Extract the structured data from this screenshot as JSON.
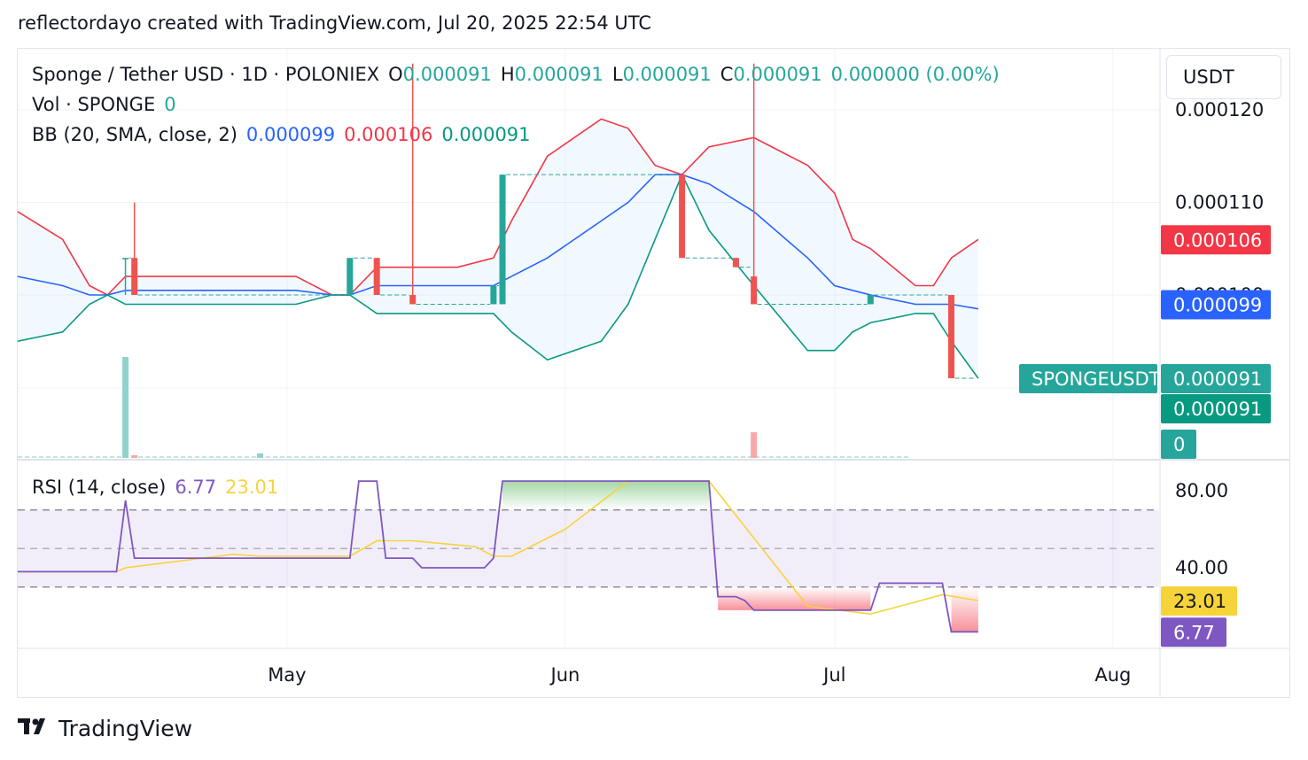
{
  "caption": "reflectordayo created with TradingView.com, Jul 20, 2025 22:54 UTC",
  "footer": {
    "logo_text": "TradingView",
    "logo_icon": "tradingview-logo-icon"
  },
  "unit_selector": "USDT",
  "colors": {
    "up": "#26a69a",
    "down": "#ef5350",
    "basis": "#2962ff",
    "upper": "#f23645",
    "lower": "#089981",
    "rsi": "#7e57c2",
    "rsi_ma": "#f7d33a",
    "grid": "#f0f3fa",
    "text": "#131722"
  },
  "legend": {
    "symbol": "Sponge / Tether USD · 1D · POLONIEX",
    "o_label": "O",
    "o_value": "0.000091",
    "h_label": "H",
    "h_value": "0.000091",
    "l_label": "L",
    "l_value": "0.000091",
    "c_label": "C",
    "c_value": "0.000091",
    "change": "0.000000 (0.00%)",
    "vol_label": "Vol · SPONGE",
    "vol_value": "0",
    "bb_label": "BB (20, SMA, close, 2)",
    "bb_basis": "0.000099",
    "bb_upper": "0.000106",
    "bb_lower": "0.000091",
    "rsi_label": "RSI (14, close)",
    "rsi_value": "6.77",
    "rsi_ma": "23.01"
  },
  "chart_data": [
    {
      "type": "candlestick",
      "title": "Sponge / Tether USD · 1D · POLONIEX",
      "x_ticks": [
        "May",
        "Jun",
        "Jul",
        "Aug"
      ],
      "y_ticks": [
        "0.000120",
        "0.000110",
        "0.000100"
      ],
      "ylim": [
        8.9e-05,
        0.00012
      ],
      "price_labels": [
        {
          "text": "0.000106",
          "value": 0.000106,
          "kind": "upper"
        },
        {
          "text": "0.000099",
          "value": 9.9e-05,
          "kind": "basis"
        },
        {
          "text": "0.000091",
          "value": 9.1e-05,
          "kind": "last"
        },
        {
          "text": "0.000091",
          "value": 9.1e-05,
          "kind": "lower"
        }
      ],
      "symbol_tag": "SPONGEUSDT",
      "volume_tag": "0",
      "candles": [
        {
          "date": "2025-04-13",
          "open": 0.000104,
          "high": 0.000104,
          "low": 0.0001,
          "close": 0.000104
        },
        {
          "date": "2025-04-14",
          "open": 0.000104,
          "high": 0.00011,
          "low": 0.0001,
          "close": 0.0001
        },
        {
          "date": "2025-05-08",
          "open": 0.0001,
          "high": 0.000104,
          "low": 0.0001,
          "close": 0.000104
        },
        {
          "date": "2025-05-11",
          "open": 0.000104,
          "high": 0.000104,
          "low": 0.0001,
          "close": 0.0001
        },
        {
          "date": "2025-05-15",
          "open": 0.0001,
          "high": 0.000125,
          "low": 9.9e-05,
          "close": 9.9e-05
        },
        {
          "date": "2025-05-24",
          "open": 9.9e-05,
          "high": 0.000101,
          "low": 9.9e-05,
          "close": 0.000101
        },
        {
          "date": "2025-05-25",
          "open": 9.9e-05,
          "high": 0.000113,
          "low": 9.9e-05,
          "close": 0.000113
        },
        {
          "date": "2025-06-14",
          "open": 0.000113,
          "high": 0.000113,
          "low": 0.000104,
          "close": 0.000104
        },
        {
          "date": "2025-06-20",
          "open": 0.000104,
          "high": 0.000104,
          "low": 0.000103,
          "close": 0.000103
        },
        {
          "date": "2025-06-22",
          "open": 0.000102,
          "high": 0.000125,
          "low": 9.9e-05,
          "close": 9.9e-05
        },
        {
          "date": "2025-07-05",
          "open": 9.9e-05,
          "high": 0.0001,
          "low": 9.9e-05,
          "close": 0.0001
        },
        {
          "date": "2025-07-14",
          "open": 0.0001,
          "high": 0.0001,
          "low": 9.1e-05,
          "close": 9.1e-05
        }
      ],
      "volume": [
        {
          "date": "2025-04-13",
          "value": 11
        },
        {
          "date": "2025-04-14",
          "value": 0.3
        },
        {
          "date": "2025-04-28",
          "value": 0.5
        },
        {
          "date": "2025-06-22",
          "value": 2.8
        }
      ],
      "bollinger": {
        "dates": [
          "2025-04-01",
          "2025-04-06",
          "2025-04-09",
          "2025-04-11",
          "2025-04-13",
          "2025-04-23",
          "2025-05-02",
          "2025-05-06",
          "2025-05-08",
          "2025-05-11",
          "2025-05-20",
          "2025-05-24",
          "2025-05-26",
          "2025-05-30",
          "2025-06-05",
          "2025-06-08",
          "2025-06-11",
          "2025-06-14",
          "2025-06-17",
          "2025-06-22",
          "2025-06-28",
          "2025-07-01",
          "2025-07-03",
          "2025-07-05",
          "2025-07-10",
          "2025-07-12",
          "2025-07-14",
          "2025-07-17"
        ],
        "upper": [
          0.000109,
          0.000106,
          0.000101,
          0.0001,
          0.000102,
          0.000102,
          0.000102,
          0.0001,
          0.0001,
          0.000103,
          0.000103,
          0.000104,
          0.000108,
          0.000115,
          0.000119,
          0.000118,
          0.000114,
          0.000113,
          0.000116,
          0.000117,
          0.000114,
          0.000111,
          0.000106,
          0.000105,
          0.000101,
          0.000101,
          0.000104,
          0.000106
        ],
        "basis": [
          0.000102,
          0.000101,
          0.0001,
          0.0001,
          0.0001005,
          0.0001005,
          0.0001005,
          0.0001,
          0.0001,
          0.000101,
          0.000101,
          0.000101,
          0.000102,
          0.000104,
          0.000108,
          0.00011,
          0.000113,
          0.000113,
          0.000112,
          0.000109,
          0.000104,
          0.000101,
          0.0001005,
          0.0001,
          9.9e-05,
          9.9e-05,
          9.9e-05,
          9.85e-05
        ],
        "lower": [
          9.5e-05,
          9.6e-05,
          9.9e-05,
          0.0001,
          9.9e-05,
          9.9e-05,
          9.9e-05,
          0.0001,
          0.0001,
          9.8e-05,
          9.8e-05,
          9.8e-05,
          9.6e-05,
          9.3e-05,
          9.5e-05,
          9.9e-05,
          0.000106,
          0.000113,
          0.000107,
          0.000101,
          9.4e-05,
          9.4e-05,
          9.6e-05,
          9.7e-05,
          9.8e-05,
          9.8e-05,
          9.5e-05,
          9.1e-05
        ]
      }
    },
    {
      "type": "line",
      "title": "RSI (14, close)",
      "y_ticks": [
        "80.00",
        "40.00"
      ],
      "ylim": [
        0,
        100
      ],
      "bands": {
        "upper": 70,
        "middle": 50,
        "lower": 30
      },
      "value_labels": [
        {
          "text": "23.01",
          "value": 23.01,
          "kind": "ma"
        },
        {
          "text": "6.77",
          "value": 6.77,
          "kind": "rsi"
        }
      ],
      "series": [
        {
          "name": "RSI",
          "dates": [
            "2025-04-01",
            "2025-04-12",
            "2025-04-13",
            "2025-04-14",
            "2025-05-08",
            "2025-05-09",
            "2025-05-11",
            "2025-05-12",
            "2025-05-15",
            "2025-05-16",
            "2025-05-23",
            "2025-05-24",
            "2025-05-25",
            "2025-06-17",
            "2025-06-18",
            "2025-06-20",
            "2025-06-21",
            "2025-06-22",
            "2025-07-05",
            "2025-07-06",
            "2025-07-13",
            "2025-07-14",
            "2025-07-17"
          ],
          "values": [
            38,
            38,
            75,
            45,
            45,
            85,
            85,
            45,
            45,
            40,
            40,
            45,
            85,
            85,
            25,
            25,
            23,
            18,
            18,
            32,
            32,
            6.77,
            6.77
          ]
        },
        {
          "name": "RSI MA",
          "dates": [
            "2025-04-01",
            "2025-04-12",
            "2025-04-13",
            "2025-04-25",
            "2025-04-28",
            "2025-05-08",
            "2025-05-11",
            "2025-05-15",
            "2025-05-22",
            "2025-05-24",
            "2025-05-26",
            "2025-06-01",
            "2025-06-08",
            "2025-06-17",
            "2025-06-28",
            "2025-07-05",
            "2025-07-13",
            "2025-07-17"
          ],
          "values": [
            38,
            38,
            40,
            47,
            46,
            46,
            54,
            54,
            51,
            46,
            46,
            60,
            85,
            85,
            20,
            16,
            26,
            23.01
          ]
        }
      ]
    }
  ]
}
